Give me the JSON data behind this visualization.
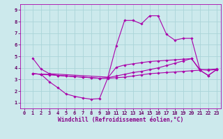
{
  "background_color": "#cce9ec",
  "grid_color": "#aad4d8",
  "line_color": "#aa00aa",
  "marker": "D",
  "markersize": 1.8,
  "linewidth": 0.8,
  "xlabel": "Windchill (Refroidissement éolien,°C)",
  "xlabel_color": "#880088",
  "xlabel_fontsize": 5.8,
  "xlim": [
    -0.5,
    23.5
  ],
  "ylim": [
    0.5,
    9.5
  ],
  "xticks": [
    0,
    1,
    2,
    3,
    4,
    5,
    6,
    7,
    8,
    9,
    10,
    11,
    12,
    13,
    14,
    15,
    16,
    17,
    18,
    19,
    20,
    21,
    22,
    23
  ],
  "yticks": [
    1,
    2,
    3,
    4,
    5,
    6,
    7,
    8,
    9
  ],
  "tick_fontsize": 5.0,
  "series": [
    {
      "x": [
        1,
        2,
        3,
        10,
        11,
        12,
        13,
        14,
        15,
        16,
        17,
        18,
        19,
        20,
        21,
        22,
        23
      ],
      "y": [
        4.85,
        3.9,
        3.5,
        3.2,
        5.9,
        8.1,
        8.1,
        7.8,
        8.5,
        8.5,
        6.9,
        6.4,
        6.55,
        6.55,
        3.85,
        3.85,
        3.9
      ]
    },
    {
      "x": [
        1,
        2,
        3,
        4,
        5,
        6,
        7,
        8,
        9,
        10,
        11,
        12,
        13,
        14,
        15,
        16,
        17,
        18,
        19,
        20,
        21,
        22,
        23
      ],
      "y": [
        3.5,
        3.45,
        3.45,
        3.35,
        3.3,
        3.25,
        3.2,
        3.15,
        3.1,
        3.15,
        3.3,
        3.45,
        3.6,
        3.7,
        3.85,
        4.0,
        4.2,
        4.4,
        4.6,
        4.8,
        3.85,
        3.8,
        3.85
      ]
    },
    {
      "x": [
        1,
        2,
        3,
        4,
        5,
        6,
        7,
        8,
        9,
        10,
        11,
        12,
        13,
        14,
        15,
        16,
        17,
        18,
        19,
        20,
        21,
        22,
        23
      ],
      "y": [
        3.5,
        3.45,
        2.8,
        2.3,
        1.75,
        1.55,
        1.4,
        1.3,
        1.35,
        3.15,
        4.05,
        4.25,
        4.35,
        4.45,
        4.55,
        4.6,
        4.65,
        4.7,
        4.75,
        4.8,
        3.8,
        3.35,
        3.85
      ]
    },
    {
      "x": [
        1,
        2,
        3,
        4,
        5,
        6,
        7,
        8,
        9,
        10,
        11,
        12,
        13,
        14,
        15,
        16,
        17,
        18,
        19,
        20,
        21,
        22,
        23
      ],
      "y": [
        3.5,
        3.45,
        3.4,
        3.35,
        3.3,
        3.25,
        3.2,
        3.15,
        3.1,
        3.1,
        3.15,
        3.2,
        3.3,
        3.4,
        3.5,
        3.55,
        3.6,
        3.65,
        3.7,
        3.75,
        3.8,
        3.35,
        3.85
      ]
    }
  ]
}
